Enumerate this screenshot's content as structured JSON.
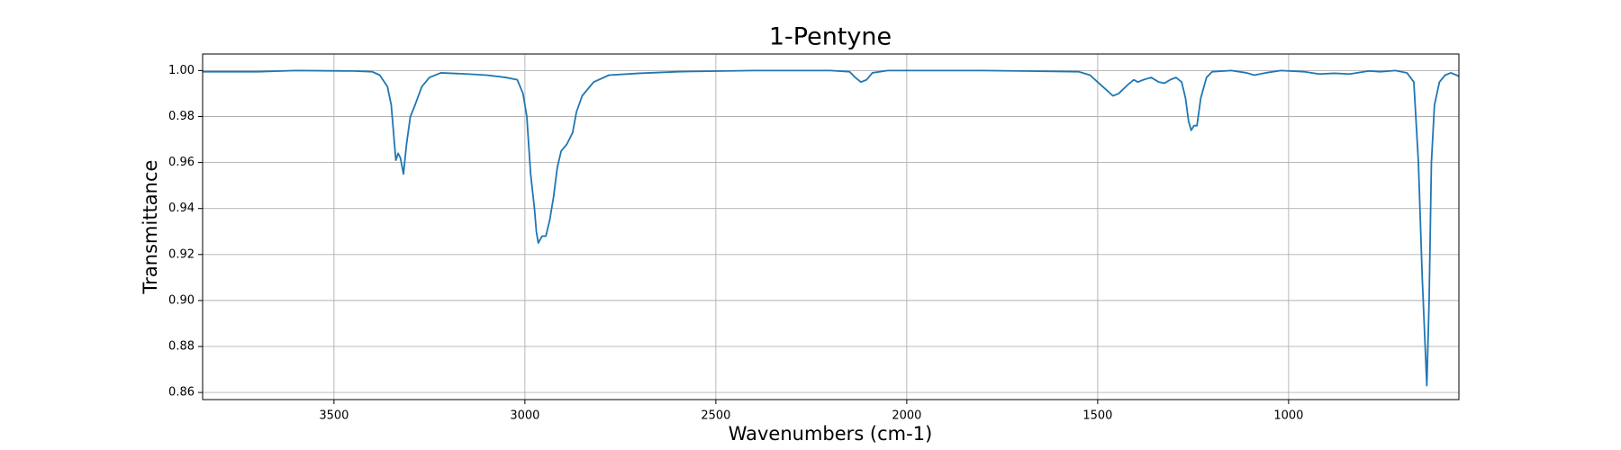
{
  "chart_data": {
    "type": "line",
    "title": "1-Pentyne",
    "x_label": "Wavenumbers (cm-1)",
    "y_label": "Transmittance",
    "x": [
      3844,
      3700,
      3600,
      3450,
      3400,
      3380,
      3360,
      3350,
      3345,
      3338,
      3332,
      3326,
      3318,
      3310,
      3300,
      3290,
      3270,
      3250,
      3220,
      3150,
      3100,
      3050,
      3020,
      3005,
      2995,
      2985,
      2975,
      2970,
      2965,
      2955,
      2945,
      2935,
      2925,
      2915,
      2905,
      2890,
      2875,
      2865,
      2850,
      2820,
      2780,
      2700,
      2600,
      2400,
      2200,
      2150,
      2135,
      2120,
      2105,
      2090,
      2050,
      1800,
      1550,
      1520,
      1500,
      1480,
      1460,
      1445,
      1420,
      1405,
      1395,
      1380,
      1360,
      1340,
      1325,
      1310,
      1295,
      1280,
      1270,
      1262,
      1255,
      1248,
      1240,
      1230,
      1215,
      1200,
      1150,
      1110,
      1090,
      1060,
      1020,
      960,
      920,
      880,
      840,
      790,
      760,
      720,
      690,
      672,
      660,
      650,
      638,
      632,
      626,
      618,
      605,
      590,
      575,
      560,
      554
    ],
    "series": [
      {
        "name": "1-Pentyne",
        "color": "#1f77b4",
        "values": [
          0.9995,
          0.9995,
          1.0,
          0.9998,
          0.9995,
          0.998,
          0.993,
          0.985,
          0.975,
          0.961,
          0.964,
          0.962,
          0.955,
          0.968,
          0.98,
          0.984,
          0.993,
          0.997,
          0.999,
          0.9985,
          0.998,
          0.997,
          0.996,
          0.99,
          0.98,
          0.955,
          0.94,
          0.93,
          0.925,
          0.928,
          0.928,
          0.935,
          0.945,
          0.958,
          0.965,
          0.968,
          0.973,
          0.982,
          0.989,
          0.995,
          0.998,
          0.9988,
          0.9995,
          1.0,
          1.0,
          0.9995,
          0.997,
          0.995,
          0.996,
          0.999,
          1.0,
          1.0,
          0.9995,
          0.998,
          0.995,
          0.992,
          0.989,
          0.99,
          0.994,
          0.996,
          0.995,
          0.996,
          0.997,
          0.995,
          0.9945,
          0.996,
          0.997,
          0.995,
          0.988,
          0.978,
          0.974,
          0.976,
          0.976,
          0.988,
          0.997,
          0.9995,
          1.0,
          0.999,
          0.998,
          0.999,
          1.0,
          0.9995,
          0.9985,
          0.9988,
          0.9985,
          0.9998,
          0.9995,
          1.0,
          0.999,
          0.995,
          0.96,
          0.91,
          0.863,
          0.9,
          0.96,
          0.985,
          0.995,
          0.998,
          0.999,
          0.998,
          0.9975
        ]
      }
    ],
    "xlim": [
      3844,
      554
    ],
    "ylim": [
      0.8569,
      1.0072
    ],
    "xticks": [
      3500,
      3000,
      2500,
      2000,
      1500,
      1000
    ],
    "yticks": [
      {
        "value": 1.0,
        "label": "1.00"
      },
      0.98,
      0.96,
      0.94,
      0.92,
      {
        "value": 0.9,
        "label": "0.90"
      },
      0.88,
      0.86
    ],
    "grid": true
  }
}
